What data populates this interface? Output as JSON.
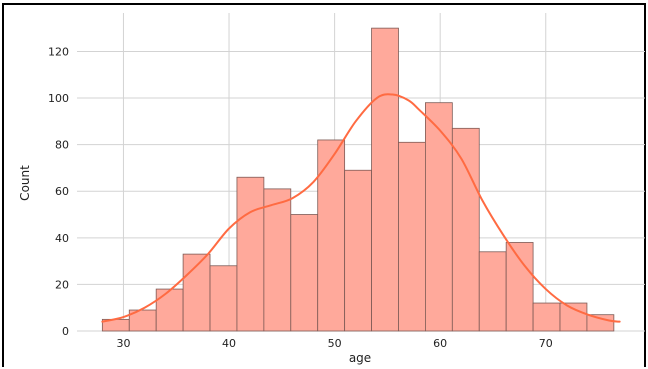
{
  "chart_data": {
    "type": "histogram",
    "xlabel": "age",
    "ylabel": "Count",
    "xlim": [
      25.6,
      79.4
    ],
    "ylim": [
      0,
      136.5
    ],
    "xticks": [
      30,
      40,
      50,
      60,
      70
    ],
    "yticks": [
      0,
      20,
      40,
      60,
      80,
      100,
      120
    ],
    "grid": true,
    "bin_edges": [
      28,
      30.55,
      33.1,
      35.65,
      38.2,
      40.75,
      43.3,
      45.85,
      48.4,
      50.95,
      53.5,
      56.05,
      58.6,
      61.15,
      63.7,
      66.25,
      68.8,
      71.35,
      73.9,
      76.45,
      77
    ],
    "counts": [
      5,
      9,
      18,
      33,
      28,
      66,
      61,
      50,
      82,
      69,
      130,
      81,
      98,
      87,
      34,
      38,
      12,
      12,
      7,
      0
    ],
    "kde": {
      "x": [
        28,
        30,
        32,
        34,
        36,
        38,
        40,
        42,
        44,
        46,
        48,
        50,
        52,
        54,
        55.5,
        57,
        58,
        60,
        62,
        64,
        66,
        68,
        70,
        72,
        74,
        76,
        77
      ],
      "y": [
        4,
        6,
        10,
        16,
        24,
        33,
        44,
        51,
        54,
        57,
        64,
        76,
        90,
        100,
        101.5,
        99,
        95,
        86,
        74,
        56,
        41,
        28,
        18,
        11,
        7,
        4.5,
        4
      ]
    },
    "colors": {
      "bar_fill": "#ffa99b",
      "bar_edge": "#7d5a55",
      "kde_line": "#ff6b42",
      "grid": "#d3d3d3"
    }
  }
}
